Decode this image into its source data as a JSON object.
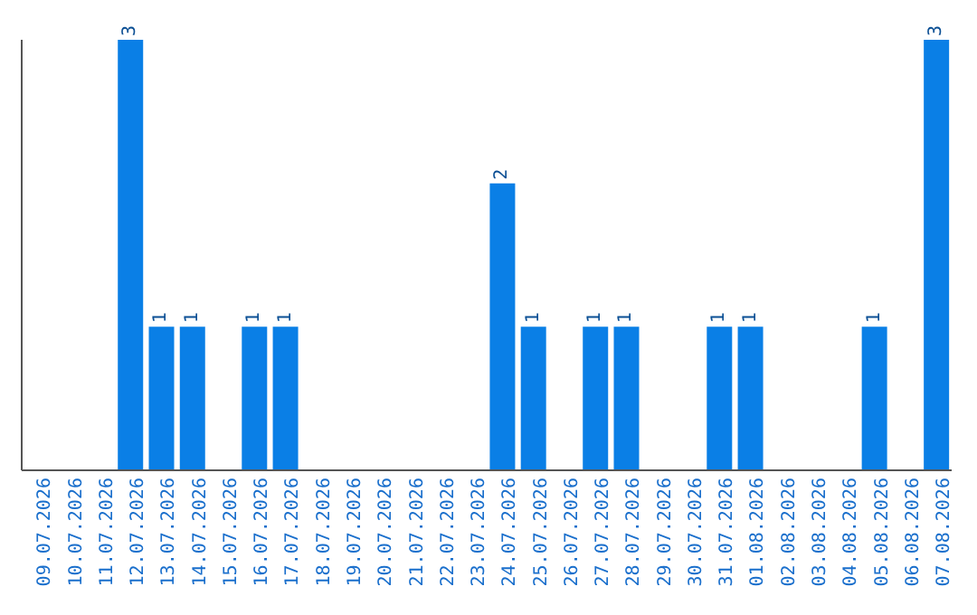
{
  "chart_data": {
    "type": "bar",
    "categories": [
      "09.07.2026",
      "10.07.2026",
      "11.07.2026",
      "12.07.2026",
      "13.07.2026",
      "14.07.2026",
      "15.07.2026",
      "16.07.2026",
      "17.07.2026",
      "18.07.2026",
      "19.07.2026",
      "20.07.2026",
      "21.07.2026",
      "22.07.2026",
      "23.07.2026",
      "24.07.2026",
      "25.07.2026",
      "26.07.2026",
      "27.07.2026",
      "28.07.2026",
      "29.07.2026",
      "30.07.2026",
      "31.07.2026",
      "01.08.2026",
      "02.08.2026",
      "03.08.2026",
      "04.08.2026",
      "05.08.2026",
      "06.08.2026",
      "07.08.2026"
    ],
    "values": [
      0,
      0,
      0,
      3,
      1,
      1,
      0,
      1,
      1,
      0,
      0,
      0,
      0,
      0,
      0,
      2,
      1,
      0,
      1,
      1,
      0,
      0,
      1,
      1,
      0,
      0,
      0,
      1,
      0,
      3
    ],
    "value_labels": [
      null,
      null,
      null,
      "3",
      "1",
      "1",
      null,
      "1",
      "1",
      null,
      null,
      null,
      null,
      null,
      null,
      "2",
      "1",
      null,
      "1",
      "1",
      null,
      null,
      "1",
      "1",
      null,
      null,
      null,
      "1",
      null,
      "3"
    ],
    "color": "#0a7fe6",
    "tick_labels": "x"
  }
}
